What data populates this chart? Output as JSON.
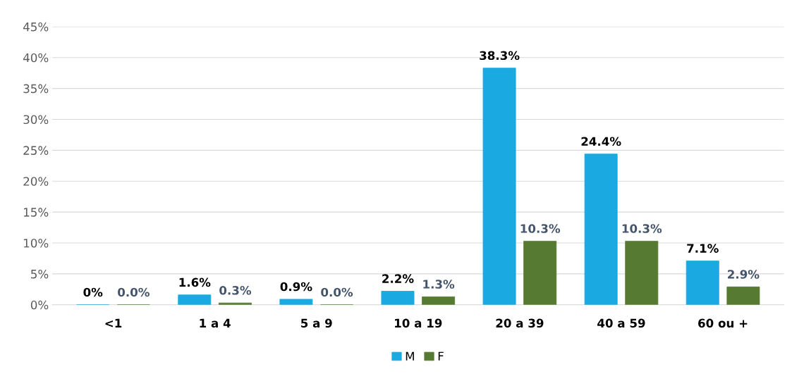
{
  "chart_data": {
    "type": "bar",
    "categories": [
      "<1",
      "1 a 4",
      "5 a 9",
      "10 a 19",
      "20 a 39",
      "40 a 59",
      "60 ou +"
    ],
    "series": [
      {
        "name": "M",
        "color": "#1aa9e0",
        "values": [
          0,
          1.6,
          0.9,
          2.2,
          38.3,
          24.4,
          7.1
        ],
        "value_labels": [
          "0%",
          "1.6%",
          "0.9%",
          "2.2%",
          "38.3%",
          "24.4%",
          "7.1%"
        ]
      },
      {
        "name": "F",
        "color": "#577a32",
        "values": [
          0.0,
          0.3,
          0.0,
          1.3,
          10.3,
          10.3,
          2.9
        ],
        "value_labels": [
          "0.0%",
          "0.3%",
          "0.0%",
          "1.3%",
          "10.3%",
          "10.3%",
          "2.9%"
        ]
      }
    ],
    "ylim": [
      0,
      45
    ],
    "yticks": [
      {
        "value": 0,
        "label": "0%"
      },
      {
        "value": 5,
        "label": "5%"
      },
      {
        "value": 10,
        "label": "10%"
      },
      {
        "value": 15,
        "label": "15%"
      },
      {
        "value": 20,
        "label": "20%"
      },
      {
        "value": 25,
        "label": "25%"
      },
      {
        "value": 30,
        "label": "30%"
      },
      {
        "value": 35,
        "label": "35%"
      },
      {
        "value": 40,
        "label": "40%"
      },
      {
        "value": 45,
        "label": "45%"
      }
    ],
    "grid": "y",
    "legend": "bottom"
  }
}
